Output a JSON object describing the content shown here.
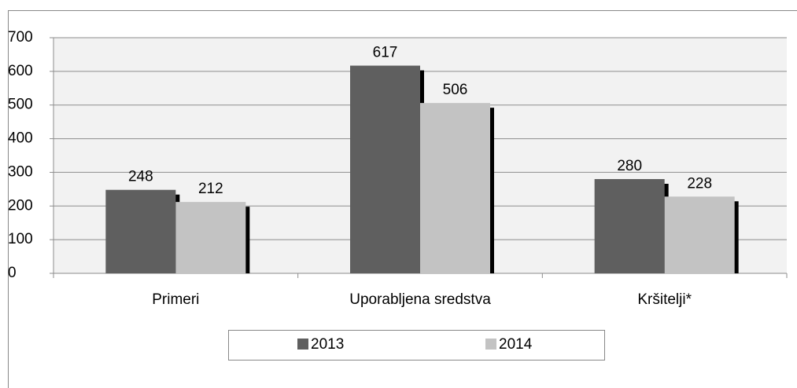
{
  "chart_data": {
    "type": "bar",
    "categories": [
      "Primeri",
      "Uporabljena sredstva",
      "Kršitelji*"
    ],
    "series": [
      {
        "name": "2013",
        "color": "#5f5f5f",
        "values": [
          248,
          617,
          280
        ]
      },
      {
        "name": "2014",
        "color": "#c3c3c3",
        "values": [
          212,
          506,
          228
        ]
      }
    ],
    "ylim": [
      0,
      700
    ],
    "yticks": [
      0,
      100,
      200,
      300,
      400,
      500,
      600,
      700
    ],
    "grid": true,
    "legend": "bottom"
  }
}
